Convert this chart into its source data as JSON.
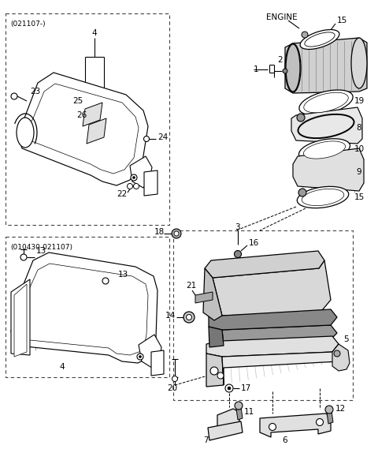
{
  "bg": "#ffffff",
  "fw": 4.8,
  "fh": 5.88,
  "dpi": 100
}
